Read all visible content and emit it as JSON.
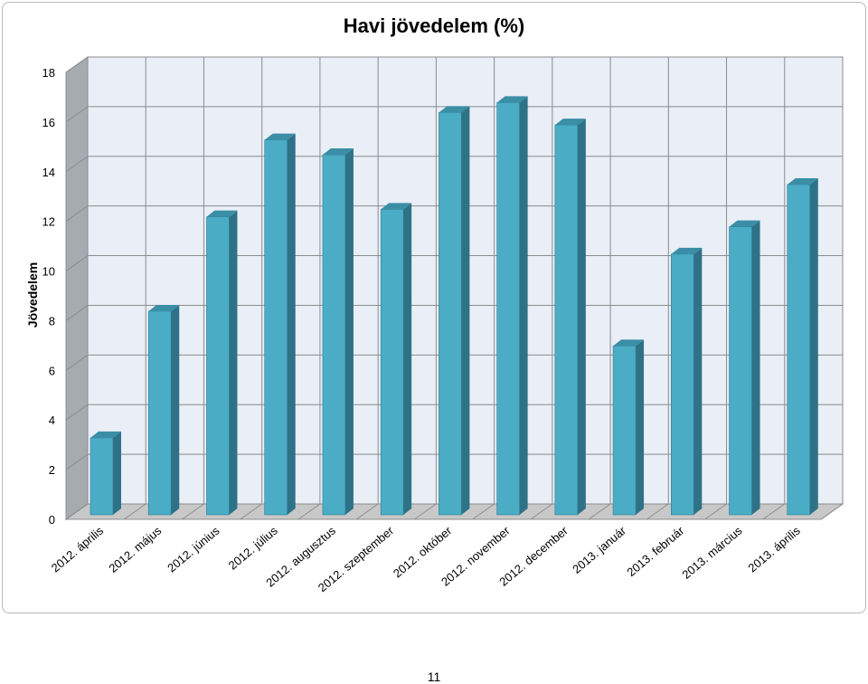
{
  "page": {
    "number": "11"
  },
  "chart_data": {
    "type": "bar",
    "title": "Havi jövedelem (%)",
    "xlabel": "",
    "ylabel": "Jövedelem",
    "ylim": [
      0,
      18
    ],
    "yticks": [
      0,
      2,
      4,
      6,
      8,
      10,
      12,
      14,
      16,
      18
    ],
    "grid": true,
    "legend": "none",
    "categories": [
      "2012. április",
      "2012. május",
      "2012. június",
      "2012. július",
      "2012. augusztus",
      "2012. szeptember",
      "2012. október",
      "2012. november",
      "2012. december",
      "2013. január",
      "2013. február",
      "2013. március",
      "2013. április"
    ],
    "series": [
      {
        "values": [
          3.1,
          8.2,
          12.0,
          15.1,
          14.5,
          12.3,
          16.2,
          16.6,
          15.7,
          6.8,
          10.5,
          11.6,
          13.3
        ]
      }
    ],
    "colors": {
      "bar_front": "#4bacc6",
      "bar_side": "#2e7287",
      "bar_top": "#3a8ea6",
      "wall": "#e9eef7",
      "side_wall": "#a6abb0",
      "floor": "#c8c8c8",
      "grid": "#8c8c8c"
    }
  }
}
